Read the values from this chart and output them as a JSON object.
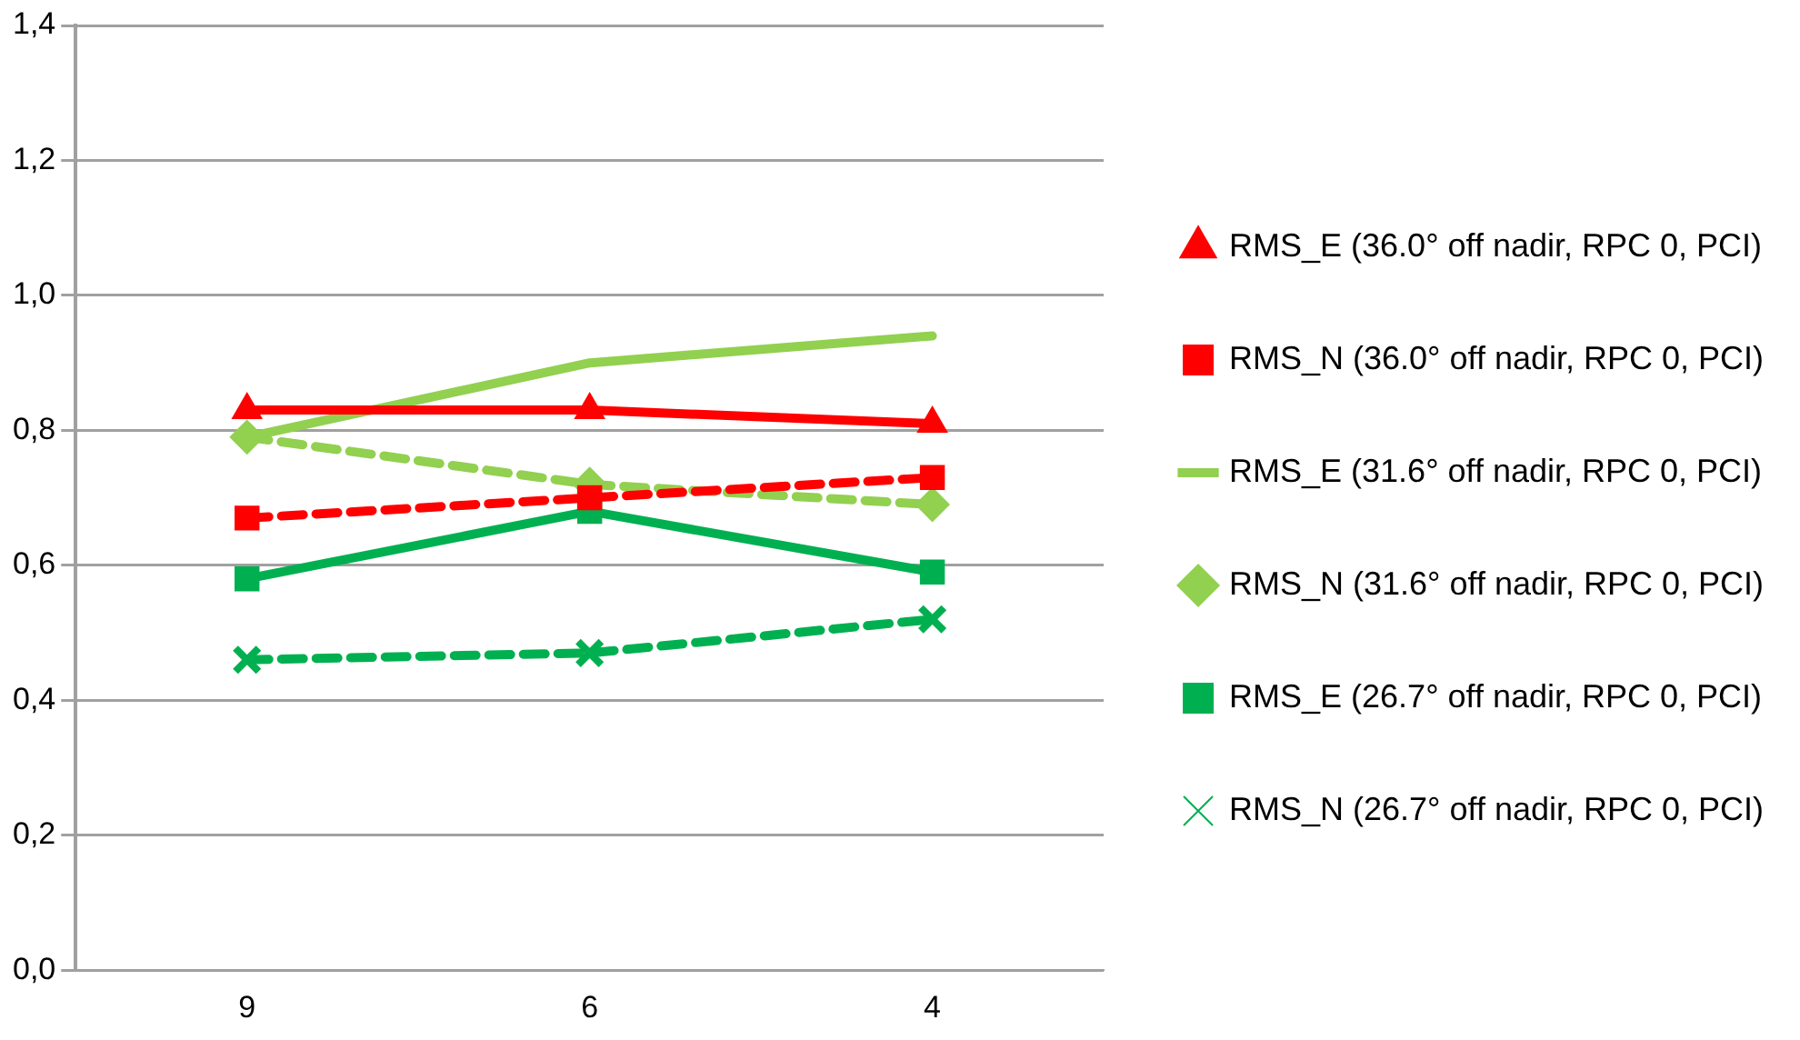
{
  "chart_data": {
    "type": "line",
    "categories": [
      "9",
      "6",
      "4"
    ],
    "ylim": [
      0,
      1.4
    ],
    "yticks": [
      {
        "value": 0,
        "label": "0,0"
      },
      {
        "value": 0.2,
        "label": "0,2"
      },
      {
        "value": 0.4,
        "label": "0,4"
      },
      {
        "value": 0.6,
        "label": "0,6"
      },
      {
        "value": 0.8,
        "label": "0,8"
      },
      {
        "value": 1.0,
        "label": "1,0"
      },
      {
        "value": 1.2,
        "label": "1,2"
      },
      {
        "value": 1.4,
        "label": "1,4"
      }
    ],
    "grid": "y",
    "legend": "right",
    "series": [
      {
        "name": "RMS_E (36.0° off nadir, RPC 0, PCI)",
        "color": "#ff0000",
        "marker": "triangle",
        "line_style": "solid",
        "values": [
          0.83,
          0.83,
          0.81
        ]
      },
      {
        "name": "RMS_N (36.0° off nadir, RPC 0, PCI)",
        "color": "#ff0000",
        "marker": "square",
        "line_style": "dashed",
        "values": [
          0.67,
          0.7,
          0.73
        ]
      },
      {
        "name": "RMS_E (31.6° off nadir, RPC 0, PCI)",
        "color": "#92d050",
        "marker": "none",
        "line_style": "solid",
        "values": [
          0.79,
          0.9,
          0.94
        ]
      },
      {
        "name": "RMS_N (31.6° off nadir, RPC 0, PCI)",
        "color": "#92d050",
        "marker": "diamond",
        "line_style": "dashed",
        "values": [
          0.79,
          0.72,
          0.69
        ]
      },
      {
        "name": "RMS_E (26.7° off nadir, RPC 0, PCI)",
        "color": "#00b050",
        "marker": "square",
        "line_style": "solid",
        "values": [
          0.58,
          0.68,
          0.59
        ]
      },
      {
        "name": "RMS_N (26.7° off nadir, RPC 0, PCI)",
        "color": "#00b050",
        "marker": "cross",
        "line_style": "dashed",
        "values": [
          0.46,
          0.47,
          0.52
        ]
      }
    ]
  }
}
